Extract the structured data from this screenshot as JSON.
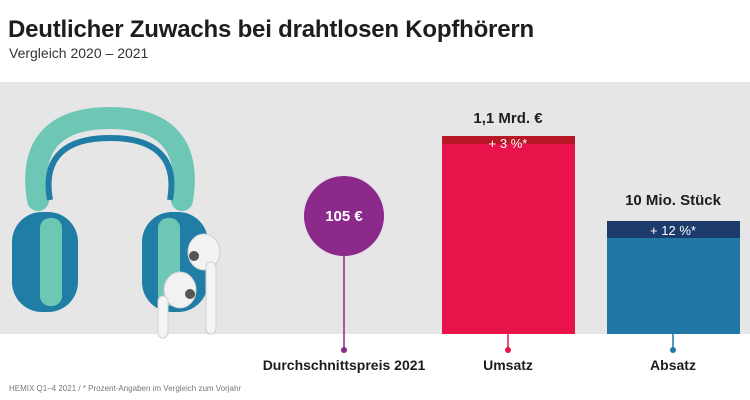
{
  "header": {
    "title": "Deutlicher Zuwachs bei drahtlosen Kopfhörern",
    "subtitle": "Vergleich 2020 – 2021"
  },
  "footnote": "HEMIX Q1–4 2021 / * Prozent-Angaben im Vergleich zum Vorjahr",
  "illustration": {
    "icon": "headphones-and-earbuds-icon"
  },
  "colors": {
    "background": "#e6e6e6",
    "price": "#8c2a8c",
    "revenue": "#e8134a",
    "revenue_growth": "#b81726",
    "sales": "#2178a6",
    "sales_growth": "#1c3a6b",
    "headphone_band": "#6ec6b5",
    "headphone_body": "#1f7da6"
  },
  "chart_data": {
    "type": "bar",
    "categories": [
      "Durchschnittspreis 2021",
      "Umsatz",
      "Absatz"
    ],
    "items": [
      {
        "category": "Durchschnittspreis 2021",
        "mark": "bubble",
        "value_label": "105 €",
        "value": 105,
        "unit": "€"
      },
      {
        "category": "Umsatz",
        "mark": "bar",
        "value_label": "1,1 Mrd. €",
        "value": 1.1,
        "unit": "Mrd. €",
        "growth_label": "+ 3 %*",
        "growth_pct": 3
      },
      {
        "category": "Absatz",
        "mark": "bar",
        "value_label": "10 Mio. Stück",
        "value": 10,
        "unit": "Mio. Stück",
        "growth_label": "+ 12 %*",
        "growth_pct": 12
      }
    ]
  }
}
